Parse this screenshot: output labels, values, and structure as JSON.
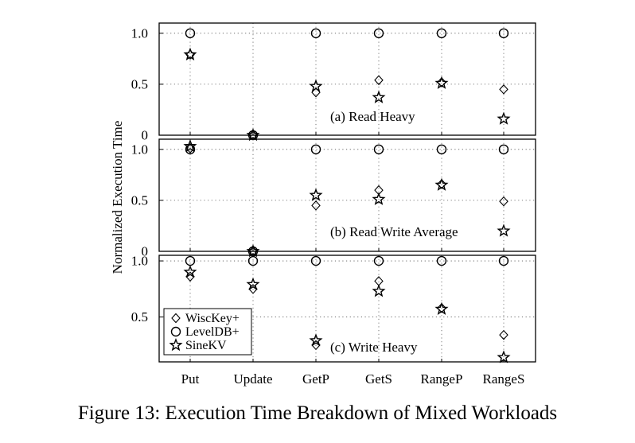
{
  "caption": "Figure 13: Execution Time Breakdown of Mixed Workloads",
  "chart_data": {
    "type": "scatter",
    "ylabel": "Normalized Execution Time",
    "categories": [
      "Put",
      "Update",
      "GetP",
      "GetS",
      "RangeP",
      "RangeS"
    ],
    "legend": {
      "placement": "bottom-left of panel (c)",
      "entries": [
        {
          "name": "WiscKey+",
          "marker": "diamond"
        },
        {
          "name": "LevelDB+",
          "marker": "circle"
        },
        {
          "name": "SineKV",
          "marker": "star"
        }
      ]
    },
    "grid": "dotted",
    "panels": [
      {
        "title": "(a) Read Heavy",
        "ylim": [
          0,
          1.1
        ],
        "yticks": [
          0,
          0.5,
          1.0
        ],
        "ytick_labels": [
          "0",
          "0.5",
          "1.0"
        ],
        "series": [
          {
            "name": "WiscKey+",
            "values": [
              0.79,
              0.0,
              0.42,
              0.54,
              0.52,
              0.45
            ]
          },
          {
            "name": "LevelDB+",
            "values": [
              1.0,
              0.0,
              1.0,
              1.0,
              1.0,
              1.0
            ]
          },
          {
            "name": "SineKV",
            "values": [
              0.79,
              0.0,
              0.48,
              0.37,
              0.51,
              0.16
            ]
          }
        ]
      },
      {
        "title": "(b) Read Write Average",
        "ylim": [
          0,
          1.1
        ],
        "yticks": [
          0,
          0.5,
          1.0
        ],
        "ytick_labels": [
          "0",
          "0.5",
          "1.0"
        ],
        "series": [
          {
            "name": "WiscKey+",
            "values": [
              1.01,
              0.0,
              0.45,
              0.6,
              0.66,
              0.49
            ]
          },
          {
            "name": "LevelDB+",
            "values": [
              1.0,
              0.0,
              1.0,
              1.0,
              1.0,
              1.0
            ]
          },
          {
            "name": "SineKV",
            "values": [
              1.03,
              0.0,
              0.55,
              0.51,
              0.65,
              0.2
            ]
          }
        ]
      },
      {
        "title": "(c) Write Heavy",
        "ylim": [
          0.1,
          1.05
        ],
        "yticks": [
          0.5,
          1.0
        ],
        "ytick_labels": [
          "0.5",
          "1.0"
        ],
        "series": [
          {
            "name": "WiscKey+",
            "values": [
              0.86,
              0.75,
              0.25,
              0.82,
              0.58,
              0.34
            ]
          },
          {
            "name": "LevelDB+",
            "values": [
              1.0,
              1.0,
              1.0,
              1.0,
              1.0,
              1.0
            ]
          },
          {
            "name": "SineKV",
            "values": [
              0.9,
              0.79,
              0.29,
              0.73,
              0.57,
              0.14
            ]
          }
        ]
      }
    ]
  }
}
